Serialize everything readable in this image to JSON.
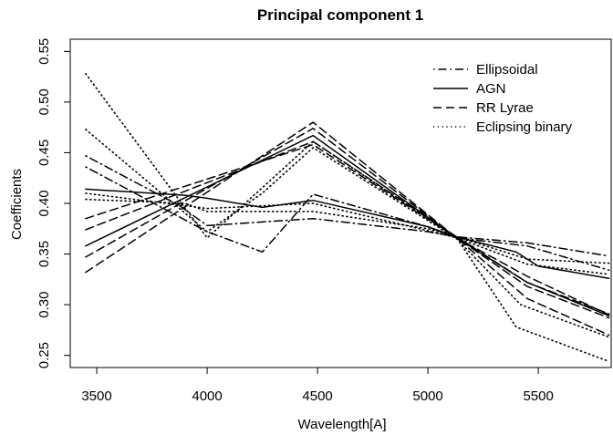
{
  "chart_data": {
    "type": "line",
    "title": "Principal component 1",
    "xlabel": "Wavelength[A]",
    "ylabel": "Coefficients",
    "xlim": [
      3380,
      5830
    ],
    "ylim": [
      0.238,
      0.562
    ],
    "x_ticks": [
      3500,
      4000,
      4500,
      5000,
      5500
    ],
    "y_ticks": [
      0.25,
      0.3,
      0.35,
      0.4,
      0.45,
      0.5,
      0.55
    ],
    "x_tick_labels": [
      "3500",
      "4000",
      "4500",
      "5000",
      "5500"
    ],
    "y_tick_labels": [
      "0.25",
      "0.30",
      "0.35",
      "0.40",
      "0.45",
      "0.50",
      "0.55"
    ],
    "grid": false,
    "legend_position": "top-right",
    "legend": [
      {
        "label": "Ellipsoidal",
        "style": "dotdash"
      },
      {
        "label": "AGN",
        "style": "solid"
      },
      {
        "label": "RR Lyrae",
        "style": "dashed"
      },
      {
        "label": "Eclipsing binary",
        "style": "dotted"
      }
    ],
    "series": [
      {
        "group": "Ellipsoidal",
        "style": "dotdash",
        "x": [
          3450,
          4000,
          4250,
          4480,
          5000,
          5130,
          5450,
          5820
        ],
        "y": [
          0.436,
          0.372,
          0.352,
          0.409,
          0.377,
          0.366,
          0.358,
          0.334
        ]
      },
      {
        "group": "Ellipsoidal",
        "style": "dotdash",
        "x": [
          3450,
          3880,
          4000,
          4480,
          5000,
          5130,
          5450,
          5820
        ],
        "y": [
          0.447,
          0.397,
          0.378,
          0.385,
          0.372,
          0.367,
          0.361,
          0.348
        ]
      },
      {
        "group": "AGN",
        "style": "solid",
        "x": [
          3450,
          3900,
          4000,
          4250,
          4480,
          5000,
          5130,
          5400,
          5500,
          5820
        ],
        "y": [
          0.414,
          0.408,
          0.405,
          0.396,
          0.403,
          0.377,
          0.367,
          0.352,
          0.338,
          0.326
        ]
      },
      {
        "group": "AGN",
        "style": "solid",
        "x": [
          3450,
          4480,
          5130,
          5450,
          5820
        ],
        "y": [
          0.358,
          0.467,
          0.366,
          0.322,
          0.289
        ]
      },
      {
        "group": "RR Lyrae",
        "style": "dashed",
        "x": [
          3450,
          4480,
          5130,
          5450,
          5820
        ],
        "y": [
          0.332,
          0.48,
          0.366,
          0.306,
          0.27
        ]
      },
      {
        "group": "RR Lyrae",
        "style": "dashed",
        "x": [
          3450,
          4480,
          5130,
          5450,
          5820
        ],
        "y": [
          0.347,
          0.474,
          0.366,
          0.318,
          0.287
        ]
      },
      {
        "group": "RR Lyrae",
        "style": "dashed",
        "x": [
          3450,
          4480,
          5130,
          5450,
          5820
        ],
        "y": [
          0.374,
          0.461,
          0.367,
          0.322,
          0.291
        ]
      },
      {
        "group": "RR Lyrae",
        "style": "dashed",
        "x": [
          3450,
          4480,
          5130,
          5450,
          5820
        ],
        "y": [
          0.385,
          0.458,
          0.366,
          0.328,
          0.29
        ]
      },
      {
        "group": "Eclipsing binary",
        "style": "dotted",
        "x": [
          3450,
          4000,
          4480,
          5130,
          5400,
          5820
        ],
        "y": [
          0.528,
          0.366,
          0.461,
          0.366,
          0.278,
          0.244
        ]
      },
      {
        "group": "Eclipsing binary",
        "style": "dotted",
        "x": [
          3450,
          4000,
          4250,
          4480,
          5130,
          5420,
          5820
        ],
        "y": [
          0.473,
          0.372,
          0.41,
          0.455,
          0.365,
          0.3,
          0.268
        ]
      },
      {
        "group": "Eclipsing binary",
        "style": "dotted",
        "x": [
          3450,
          3900,
          4000,
          4480,
          5000,
          5130,
          5450,
          5820
        ],
        "y": [
          0.404,
          0.4,
          0.392,
          0.392,
          0.375,
          0.367,
          0.345,
          0.341
        ]
      },
      {
        "group": "Eclipsing binary",
        "style": "dotted",
        "x": [
          3450,
          4000,
          4480,
          5000,
          5130,
          5450,
          5820
        ],
        "y": [
          0.41,
          0.395,
          0.4,
          0.373,
          0.366,
          0.34,
          0.33
        ]
      }
    ]
  }
}
